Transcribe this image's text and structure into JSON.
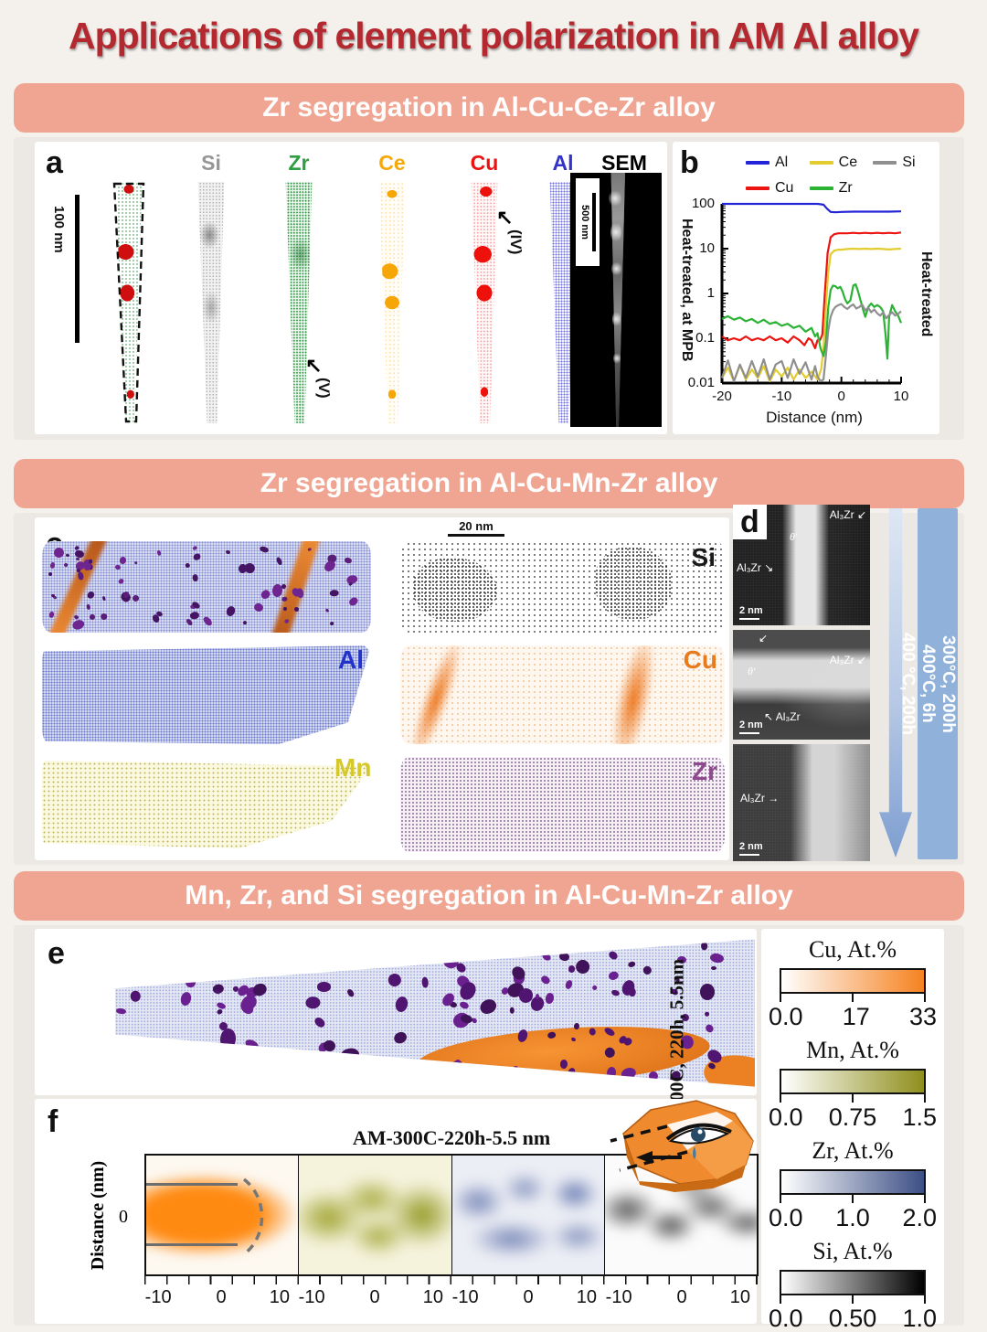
{
  "title": "Applications of element polarization in AM Al alloy",
  "sections": [
    {
      "header": "Zr segregation in Al-Cu-Ce-Zr alloy"
    },
    {
      "header": "Zr segregation in Al-Cu-Mn-Zr alloy"
    },
    {
      "header": "Mn, Zr, and Si segregation in Al-Cu-Mn-Zr alloy"
    }
  ],
  "panel_a": {
    "label": "a",
    "scale_bar": "100 nm",
    "column_labels": [
      "Si",
      "Zr",
      "Ce",
      "Cu",
      "Al",
      "SEM"
    ],
    "column_colors": [
      "#969696",
      "#2f9e41",
      "#f6a90b",
      "#ee1111",
      "#3333cc",
      "#000000"
    ],
    "sem_scale": "500 nm",
    "annotation_iv": "(IV)",
    "annotation_v": "(V)"
  },
  "panel_b": {
    "label": "b",
    "ylabel_left": "Heat-treated, at MPB",
    "ylabel_right": "Heat-treated",
    "xlabel": "Distance (nm)"
  },
  "chart_data": {
    "type": "line",
    "xlabel": "Distance (nm)",
    "ylabel_left": "Heat-treated, at MPB",
    "ylabel_right": "Heat-treated",
    "yscale": "log",
    "xlim": [
      -20,
      10
    ],
    "ylim": [
      0.01,
      100
    ],
    "xticks": [
      -20,
      -10,
      0,
      10
    ],
    "yticks": [
      100,
      10,
      1,
      0.1,
      0.01
    ],
    "legend_order": [
      "Al",
      "Ce",
      "Si",
      "Cu",
      "Zr"
    ],
    "series": [
      {
        "name": "Al",
        "color": "#2424d8",
        "points": [
          [
            -20,
            100
          ],
          [
            -6,
            100
          ],
          [
            -4,
            100
          ],
          [
            -3,
            96
          ],
          [
            -2.4,
            78
          ],
          [
            -1.8,
            66
          ],
          [
            -1,
            65
          ],
          [
            0,
            66
          ],
          [
            2,
            67
          ],
          [
            5,
            67
          ],
          [
            8,
            67
          ],
          [
            10,
            68
          ]
        ]
      },
      {
        "name": "Cu",
        "color": "#ec1410",
        "points": [
          [
            -20,
            0.11
          ],
          [
            -19,
            0.09
          ],
          [
            -18,
            0.1
          ],
          [
            -17,
            0.09
          ],
          [
            -16,
            0.11
          ],
          [
            -15,
            0.09
          ],
          [
            -14,
            0.1
          ],
          [
            -13,
            0.09
          ],
          [
            -12,
            0.11
          ],
          [
            -11,
            0.09
          ],
          [
            -10,
            0.1
          ],
          [
            -9,
            0.08
          ],
          [
            -8,
            0.11
          ],
          [
            -7,
            0.09
          ],
          [
            -6.2,
            0.07
          ],
          [
            -5.5,
            0.1
          ],
          [
            -5,
            0.09
          ],
          [
            -4.4,
            0.06
          ],
          [
            -4,
            0.09
          ],
          [
            -3.6,
            0.09
          ],
          [
            -3.2,
            0.12
          ],
          [
            -2.8,
            0.9
          ],
          [
            -2.3,
            8
          ],
          [
            -1.8,
            18
          ],
          [
            -1.2,
            21
          ],
          [
            -0.5,
            22
          ],
          [
            0,
            22
          ],
          [
            1,
            22
          ],
          [
            2,
            22.5
          ],
          [
            3,
            22
          ],
          [
            4,
            22.5
          ],
          [
            5,
            22
          ],
          [
            6,
            22.5
          ],
          [
            7,
            22
          ],
          [
            8,
            22.5
          ],
          [
            9,
            22
          ],
          [
            10,
            23
          ]
        ]
      },
      {
        "name": "Ce",
        "color": "#e3cc30",
        "points": [
          [
            -20,
            0.013
          ],
          [
            -19,
            0.022
          ],
          [
            -18,
            0.011
          ],
          [
            -17,
            0.025
          ],
          [
            -16,
            0.012
          ],
          [
            -15,
            0.02
          ],
          [
            -14,
            0.013
          ],
          [
            -13,
            0.024
          ],
          [
            -12,
            0.011
          ],
          [
            -11,
            0.02
          ],
          [
            -10,
            0.014
          ],
          [
            -9,
            0.022
          ],
          [
            -8,
            0.012
          ],
          [
            -7,
            0.02
          ],
          [
            -6,
            0.013
          ],
          [
            -5,
            0.018
          ],
          [
            -4,
            0.012
          ],
          [
            -3.4,
            0.02
          ],
          [
            -3,
            0.06
          ],
          [
            -2.6,
            0.5
          ],
          [
            -2.2,
            3
          ],
          [
            -1.8,
            7.5
          ],
          [
            -1.2,
            9
          ],
          [
            -0.5,
            9.5
          ],
          [
            0,
            9.5
          ],
          [
            1,
            9.8
          ],
          [
            2,
            10
          ],
          [
            3,
            9.8
          ],
          [
            4,
            10
          ],
          [
            5,
            9.8
          ],
          [
            6,
            10
          ],
          [
            7,
            9.8
          ],
          [
            8,
            9.6
          ],
          [
            9,
            9.8
          ],
          [
            10,
            10
          ]
        ]
      },
      {
        "name": "Zr",
        "color": "#2cb235",
        "points": [
          [
            -20,
            0.27
          ],
          [
            -19,
            0.31
          ],
          [
            -18,
            0.26
          ],
          [
            -17,
            0.29
          ],
          [
            -16,
            0.24
          ],
          [
            -15,
            0.27
          ],
          [
            -14,
            0.22
          ],
          [
            -13,
            0.26
          ],
          [
            -12,
            0.21
          ],
          [
            -11,
            0.23
          ],
          [
            -10,
            0.19
          ],
          [
            -9,
            0.21
          ],
          [
            -8,
            0.17
          ],
          [
            -7,
            0.19
          ],
          [
            -6,
            0.14
          ],
          [
            -5,
            0.17
          ],
          [
            -4.4,
            0.11
          ],
          [
            -4,
            0.13
          ],
          [
            -3.5,
            0.06
          ],
          [
            -3,
            0.04
          ],
          [
            -2.6,
            0.08
          ],
          [
            -2.2,
            0.5
          ],
          [
            -1.8,
            1.2
          ],
          [
            -1.4,
            1.5
          ],
          [
            -1,
            1.45
          ],
          [
            -0.6,
            1.3
          ],
          [
            -0.2,
            1.4
          ],
          [
            0.2,
            1.1
          ],
          [
            0.6,
            0.75
          ],
          [
            1,
            0.6
          ],
          [
            1.5,
            0.7
          ],
          [
            2,
            1.5
          ],
          [
            2.4,
            1.6
          ],
          [
            2.8,
            1.1
          ],
          [
            3.2,
            0.7
          ],
          [
            3.6,
            0.45
          ],
          [
            4,
            0.3
          ],
          [
            4.5,
            0.5
          ],
          [
            5,
            0.6
          ],
          [
            5.5,
            0.5
          ],
          [
            6,
            0.55
          ],
          [
            6.5,
            0.5
          ],
          [
            7,
            0.4
          ],
          [
            7.4,
            0.12
          ],
          [
            7.7,
            0.035
          ],
          [
            8,
            0.3
          ],
          [
            8.5,
            0.55
          ],
          [
            9,
            0.4
          ],
          [
            9.5,
            0.32
          ],
          [
            10,
            0.22
          ]
        ]
      },
      {
        "name": "Si",
        "color": "#8f8f8f",
        "points": [
          [
            -20,
            0.013
          ],
          [
            -19,
            0.032
          ],
          [
            -18,
            0.011
          ],
          [
            -17,
            0.026
          ],
          [
            -16,
            0.013
          ],
          [
            -15,
            0.031
          ],
          [
            -14,
            0.014
          ],
          [
            -13,
            0.034
          ],
          [
            -12,
            0.012
          ],
          [
            -11,
            0.026
          ],
          [
            -10,
            0.031
          ],
          [
            -9,
            0.013
          ],
          [
            -8,
            0.034
          ],
          [
            -7,
            0.016
          ],
          [
            -6,
            0.029
          ],
          [
            -5,
            0.012
          ],
          [
            -4.4,
            0.024
          ],
          [
            -4,
            0.014
          ],
          [
            -3.5,
            0.011
          ],
          [
            -3,
            0.012
          ],
          [
            -2.6,
            0.04
          ],
          [
            -2.2,
            0.15
          ],
          [
            -1.8,
            0.3
          ],
          [
            -1.4,
            0.42
          ],
          [
            -1,
            0.5
          ],
          [
            -0.5,
            0.55
          ],
          [
            0,
            0.58
          ],
          [
            0.5,
            0.5
          ],
          [
            1,
            0.45
          ],
          [
            1.5,
            0.52
          ],
          [
            2,
            0.57
          ],
          [
            2.5,
            0.46
          ],
          [
            3,
            0.5
          ],
          [
            3.5,
            0.56
          ],
          [
            4,
            0.42
          ],
          [
            4.5,
            0.48
          ],
          [
            5,
            0.38
          ],
          [
            5.5,
            0.44
          ],
          [
            6,
            0.36
          ],
          [
            6.5,
            0.32
          ],
          [
            7,
            0.38
          ],
          [
            7.5,
            0.28
          ],
          [
            8,
            0.33
          ],
          [
            8.5,
            0.38
          ],
          [
            9,
            0.32
          ],
          [
            9.5,
            0.35
          ],
          [
            10,
            0.4
          ]
        ]
      }
    ]
  },
  "panel_c": {
    "label": "c",
    "scale_bar": "20 nm",
    "map_labels": {
      "si": "Si",
      "al": "Al",
      "cu": "Cu",
      "mn": "Mn",
      "zr": "Zr"
    },
    "label_colors": {
      "si": "#1a1a1a",
      "al": "#2233cc",
      "cu": "#e87b1e",
      "mn": "#d4c82e",
      "zr": "#8e4a8e"
    }
  },
  "panel_d": {
    "label": "d",
    "images": [
      {
        "label_top": "Al₃Zr",
        "label_mid": "θ′",
        "label_side": "Al₃Zr",
        "scale": "2 nm"
      },
      {
        "label_top": "Al₃Zr",
        "label_mid": "θ′",
        "label_side": "Al₃Zr",
        "scale": "2 nm"
      },
      {
        "label_top": "Al₃Zr →",
        "label_mid": "",
        "label_side": "",
        "scale": "2 nm"
      }
    ],
    "conditions": [
      "300°C, 200h",
      "400°C, 6h",
      "400 °C, 200h"
    ]
  },
  "panel_e": {
    "label": "e",
    "side_label": "300C, 220h, 5.5nm"
  },
  "panel_f": {
    "label": "f",
    "title": "AM-300C-220h-5.5 nm",
    "ylabel": "Distance (nm)",
    "ytick": "0",
    "xticks": [
      "-10",
      "0",
      "10"
    ]
  },
  "colorbars": [
    {
      "title": "Cu, At.%",
      "ticks": [
        "0.0",
        "17",
        "33"
      ],
      "max_color": "#f58220"
    },
    {
      "title": "Mn, At.%",
      "ticks": [
        "0.0",
        "0.75",
        "1.5"
      ],
      "max_color": "#8f8f1d"
    },
    {
      "title": "Zr, At.%",
      "ticks": [
        "0.0",
        "1.0",
        "2.0"
      ],
      "max_color": "#3c4f85"
    },
    {
      "title": "Si, At.%",
      "ticks": [
        "0.0",
        "0.50",
        "1.0"
      ],
      "max_color": "#000000"
    }
  ]
}
